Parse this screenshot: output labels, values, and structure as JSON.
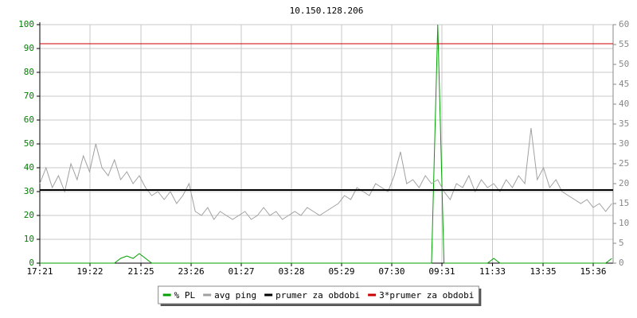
{
  "chart_data": {
    "type": "line",
    "title": "10.150.128.206",
    "x": [
      0,
      15,
      30,
      45,
      60,
      75,
      90,
      105,
      120,
      135,
      150,
      165,
      180,
      195,
      210,
      225,
      240,
      255,
      270,
      285,
      300,
      315,
      330,
      345,
      360,
      375,
      390,
      405,
      420,
      435,
      450,
      465,
      480,
      495,
      510,
      525,
      540,
      555,
      570,
      585,
      600,
      615,
      630,
      645,
      660,
      675,
      690,
      705,
      720,
      735,
      750,
      765,
      780,
      795,
      810,
      825,
      840,
      855,
      870,
      885,
      900,
      915,
      930,
      945,
      960,
      975,
      990,
      1005,
      1020,
      1035,
      1050,
      1065,
      1080,
      1095,
      1110,
      1125,
      1140,
      1155,
      1170,
      1185,
      1200,
      1215,
      1230,
      1245,
      1260,
      1275,
      1290,
      1305,
      1320,
      1335,
      1350,
      1365,
      1380
    ],
    "xlim": [
      0,
      1383
    ],
    "xticks": [
      {
        "value": 0,
        "label": "17:21"
      },
      {
        "value": 121,
        "label": "19:22"
      },
      {
        "value": 244,
        "label": "21:25"
      },
      {
        "value": 365,
        "label": "23:26"
      },
      {
        "value": 486,
        "label": "01:27"
      },
      {
        "value": 607,
        "label": "03:28"
      },
      {
        "value": 728,
        "label": "05:29"
      },
      {
        "value": 849,
        "label": "07:30"
      },
      {
        "value": 970,
        "label": "09:31"
      },
      {
        "value": 1092,
        "label": "11:33"
      },
      {
        "value": 1214,
        "label": "13:35"
      },
      {
        "value": 1335,
        "label": "15:36"
      }
    ],
    "ylim": [
      0,
      100
    ],
    "yticks": [
      0,
      10,
      20,
      30,
      40,
      50,
      60,
      70,
      80,
      90,
      100
    ],
    "y2lim": [
      0,
      60
    ],
    "y2ticks": [
      0,
      5,
      10,
      15,
      20,
      25,
      30,
      35,
      40,
      45,
      50,
      55,
      60
    ],
    "grid": true,
    "series": [
      {
        "name": "% PL",
        "color": "#00a000",
        "values": [
          0,
          0,
          0,
          0,
          0,
          0,
          0,
          0,
          0,
          0,
          0,
          0,
          0,
          2,
          3,
          2,
          4,
          2,
          0,
          0,
          0,
          0,
          0,
          0,
          0,
          0,
          0,
          0,
          0,
          0,
          0,
          0,
          0,
          0,
          0,
          0,
          0,
          0,
          0,
          0,
          0,
          0,
          0,
          0,
          0,
          0,
          0,
          0,
          0,
          0,
          0,
          0,
          0,
          0,
          0,
          0,
          0,
          0,
          0,
          0,
          0,
          0,
          0,
          0,
          100,
          0,
          0,
          0,
          0,
          0,
          0,
          0,
          0,
          2,
          0,
          0,
          0,
          0,
          0,
          0,
          0,
          0,
          0,
          0,
          0,
          0,
          0,
          0,
          0,
          0,
          0,
          0,
          2
        ]
      },
      {
        "name": "avg ping",
        "color": "#a0a0a0",
        "axis": "y2",
        "values": [
          20,
          24,
          19,
          22,
          18,
          25,
          21,
          27,
          23,
          30,
          24,
          22,
          26,
          21,
          23,
          20,
          22,
          19,
          17,
          18,
          16,
          18,
          15,
          17,
          20,
          13,
          12,
          14,
          11,
          13,
          12,
          11,
          12,
          13,
          11,
          12,
          14,
          12,
          13,
          11,
          12,
          13,
          12,
          14,
          13,
          12,
          13,
          14,
          15,
          17,
          16,
          19,
          18,
          17,
          20,
          19,
          18,
          22,
          28,
          20,
          21,
          19,
          22,
          20,
          21,
          18,
          16,
          20,
          19,
          22,
          18,
          21,
          19,
          20,
          18,
          21,
          19,
          22,
          20,
          34,
          21,
          24,
          19,
          21,
          18,
          17,
          16,
          15,
          16,
          14,
          15,
          13,
          15
        ]
      }
    ],
    "reference_lines": [
      {
        "name": "prumer za obdobi",
        "color": "#000000",
        "axis": "y2",
        "value": 18.4
      },
      {
        "name": "3*prumer za obdobi",
        "color": "#cc0000",
        "axis": "y2",
        "value": 55.2
      }
    ]
  }
}
